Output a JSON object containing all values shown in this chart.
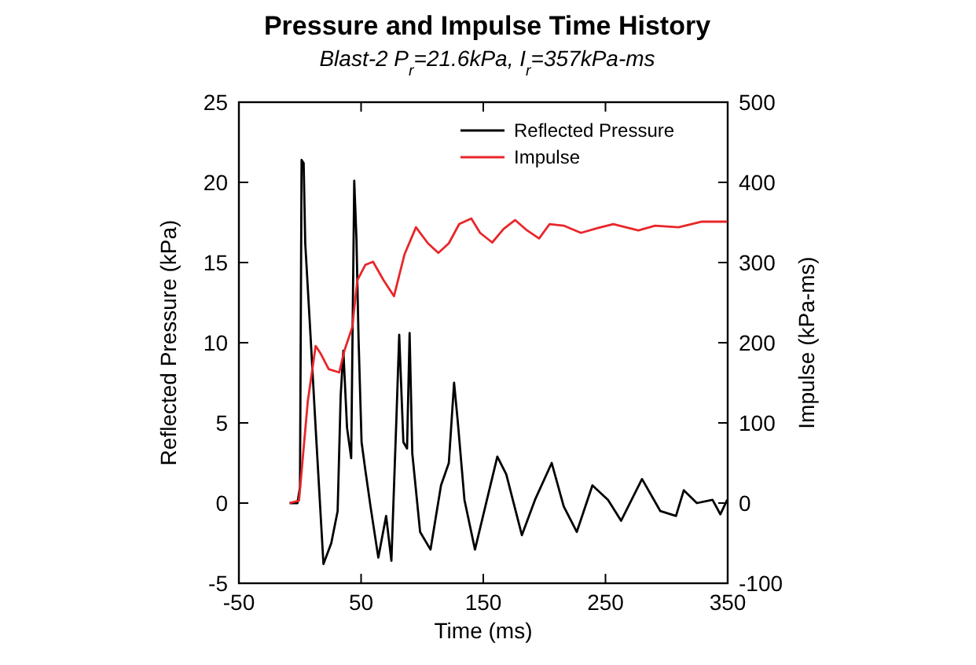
{
  "chart_data": {
    "type": "line",
    "title": "Pressure and Impulse Time History",
    "subtitle": "Blast-2 P$_{r}$=21.6kPa, I$_{r}$=357kPa-ms",
    "xlabel": "Time (ms)",
    "ylabel": "Reflected Pressure (kPa)",
    "y2label": "Impulse (kPa-ms)",
    "xlim": [
      -50,
      350
    ],
    "xticks": [
      -50,
      50,
      150,
      250,
      350
    ],
    "ylim": [
      -5,
      25
    ],
    "yticks": [
      -5,
      0,
      5,
      10,
      15,
      20,
      25
    ],
    "y2lim": [
      -100,
      500
    ],
    "y2ticks": [
      -100,
      0,
      100,
      200,
      300,
      400,
      500
    ],
    "legend": "top right",
    "grid": false,
    "series": [
      {
        "name": "Reflected Pressure",
        "color": "#000000",
        "x": [
          -8.5,
          -2.1,
          0,
          1.3,
          3,
          4.3,
          8.5,
          12.8,
          19.2,
          25.6,
          30.8,
          33.3,
          35.5,
          38.5,
          41.9,
          44.4,
          46.2,
          47.9,
          50.4,
          53.4,
          57.7,
          64.1,
          70.5,
          74.8,
          79.1,
          81.2,
          84.6,
          87.6,
          89.7,
          91.9,
          98.3,
          106.8,
          115.4,
          121.8,
          126.1,
          129.1,
          134.6,
          143.2,
          151.7,
          161.5,
          168.8,
          181.6,
          192.3,
          206,
          215.8,
          226.5,
          239.3,
          252.1,
          262.8,
          279.9,
          294.9,
          307.7,
          314.1,
          324.8,
          337.6,
          344,
          349.6
        ],
        "values": [
          0,
          0,
          1,
          21.4,
          21.2,
          16.2,
          10.6,
          4.7,
          -3.8,
          -2.5,
          -0.5,
          6.7,
          9.5,
          4.7,
          2.8,
          20.1,
          16.5,
          10.3,
          3.8,
          2.1,
          -0.2,
          -3.4,
          -0.8,
          -3.6,
          5.7,
          10.5,
          3.8,
          3.4,
          10.6,
          3.1,
          -1.8,
          -2.9,
          1.1,
          2.5,
          7.5,
          5.1,
          0.2,
          -2.9,
          -0.2,
          2.9,
          1.8,
          -2.0,
          0.2,
          2.5,
          -0.2,
          -1.8,
          1.1,
          0.2,
          -1.1,
          1.5,
          -0.5,
          -0.8,
          0.8,
          0,
          0.2,
          -0.7,
          0.2
        ]
      },
      {
        "name": "Impulse",
        "color": "#e8262a",
        "axis": "y2",
        "x": [
          -8.5,
          -0.8,
          6.4,
          12.8,
          17.1,
          23.5,
          32.1,
          36.3,
          42.7,
          47,
          53.4,
          59.8,
          68.4,
          76.9,
          85.5,
          94.9,
          104.7,
          113.2,
          121.8,
          130.3,
          140.2,
          147.4,
          157.3,
          166.7,
          176.1,
          185.9,
          195.7,
          204.3,
          215.8,
          229.9,
          243.6,
          256.4,
          276.9,
          290.6,
          309.8,
          329,
          349.6
        ],
        "values": [
          0,
          3,
          127,
          196,
          186,
          167,
          163,
          190,
          219,
          278,
          297,
          301,
          278,
          258,
          310,
          344,
          324,
          312,
          324,
          348,
          355,
          337,
          325,
          342,
          353,
          340,
          330,
          348,
          346,
          337,
          343,
          348,
          340,
          346,
          344,
          351,
          351
        ]
      }
    ]
  }
}
